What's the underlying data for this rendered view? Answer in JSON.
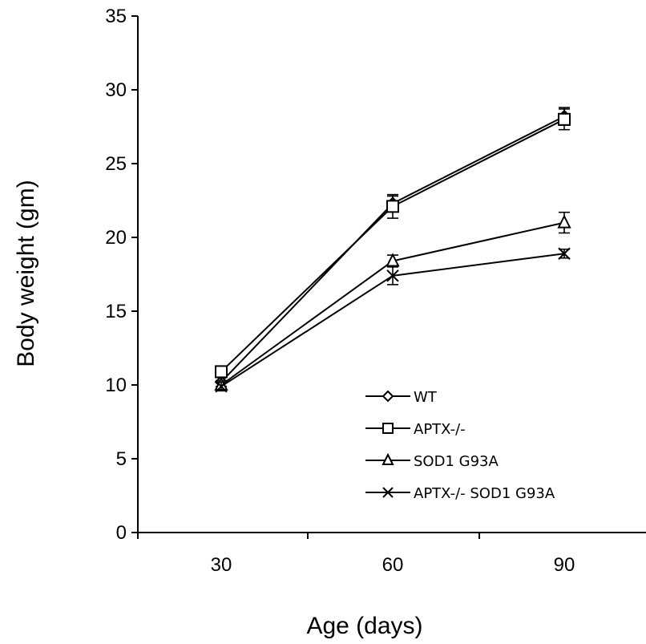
{
  "chart_data": {
    "type": "line",
    "title": "",
    "xlabel": "Age (days)",
    "ylabel": "Body weight (gm)",
    "categories": [
      "30",
      "60",
      "90"
    ],
    "ylim": [
      0,
      35
    ],
    "yticks": [
      "0",
      "5",
      "10",
      "15",
      "20",
      "25",
      "30",
      "35"
    ],
    "grid": false,
    "legend_position": "bottom-right",
    "series": [
      {
        "name": "WT",
        "marker": "diamond",
        "values": [
          10.2,
          22.3,
          28.2
        ],
        "errors": [
          0.3,
          0.5,
          0.6
        ]
      },
      {
        "name": "APTX-/-",
        "marker": "square",
        "values": [
          10.9,
          22.1,
          28.0
        ],
        "errors": [
          0.3,
          0.8,
          0.7
        ]
      },
      {
        "name": "SOD1 G93A",
        "marker": "triangle",
        "values": [
          10.0,
          18.4,
          21.0
        ],
        "errors": [
          0.3,
          0.4,
          0.7
        ]
      },
      {
        "name": "APTX-/- SOD1 G93A",
        "marker": "x",
        "values": [
          9.9,
          17.4,
          18.9
        ],
        "errors": [
          0.3,
          0.6,
          0.3
        ]
      }
    ]
  }
}
